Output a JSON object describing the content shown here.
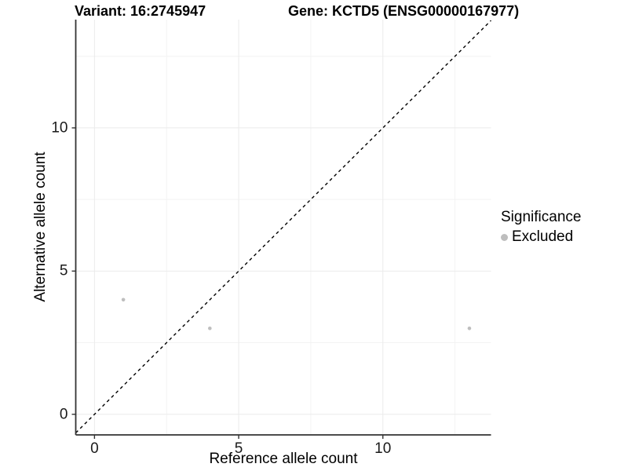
{
  "titles": {
    "variant": "Variant: 16:2745947",
    "gene": "Gene: KCTD5 (ENSG00000167977)"
  },
  "axes": {
    "x_label": "Reference allele count",
    "y_label": "Alternative allele count"
  },
  "legend": {
    "title": "Significance",
    "items": [
      {
        "label": "Excluded",
        "color": "#bebebe"
      }
    ]
  },
  "colors": {
    "background": "#ffffff",
    "axis_line": "#333333",
    "tick_mark": "#333333",
    "grid_major": "#ebebeb",
    "grid_minor": "#f3f3f3",
    "point": "#bebebe",
    "identity_line": "#000000",
    "text": "#000000"
  },
  "chart_data": {
    "type": "scatter",
    "title": "Variant: 16:2745947   |   Gene: KCTD5 (ENSG00000167977)",
    "xlabel": "Reference allele count",
    "ylabel": "Alternative allele count",
    "xlim": [
      -0.65,
      13.75
    ],
    "ylim": [
      -0.72,
      13.78
    ],
    "x_ticks": [
      0,
      5,
      10
    ],
    "y_ticks": [
      0,
      5,
      10
    ],
    "x_minor_ticks": [
      2.5,
      7.5,
      12.5
    ],
    "y_minor_ticks": [
      2.5,
      7.5,
      12.5
    ],
    "grid": true,
    "legend_position": "right",
    "series": [
      {
        "name": "Excluded",
        "color": "#bebebe",
        "point_radius": 2.3,
        "points": [
          {
            "x": 1,
            "y": 4
          },
          {
            "x": 4,
            "y": 3
          },
          {
            "x": 13,
            "y": 3
          }
        ]
      }
    ],
    "reference_line": {
      "kind": "abline",
      "slope": 1,
      "intercept": 0,
      "style": "dashed",
      "color": "#000000"
    }
  }
}
